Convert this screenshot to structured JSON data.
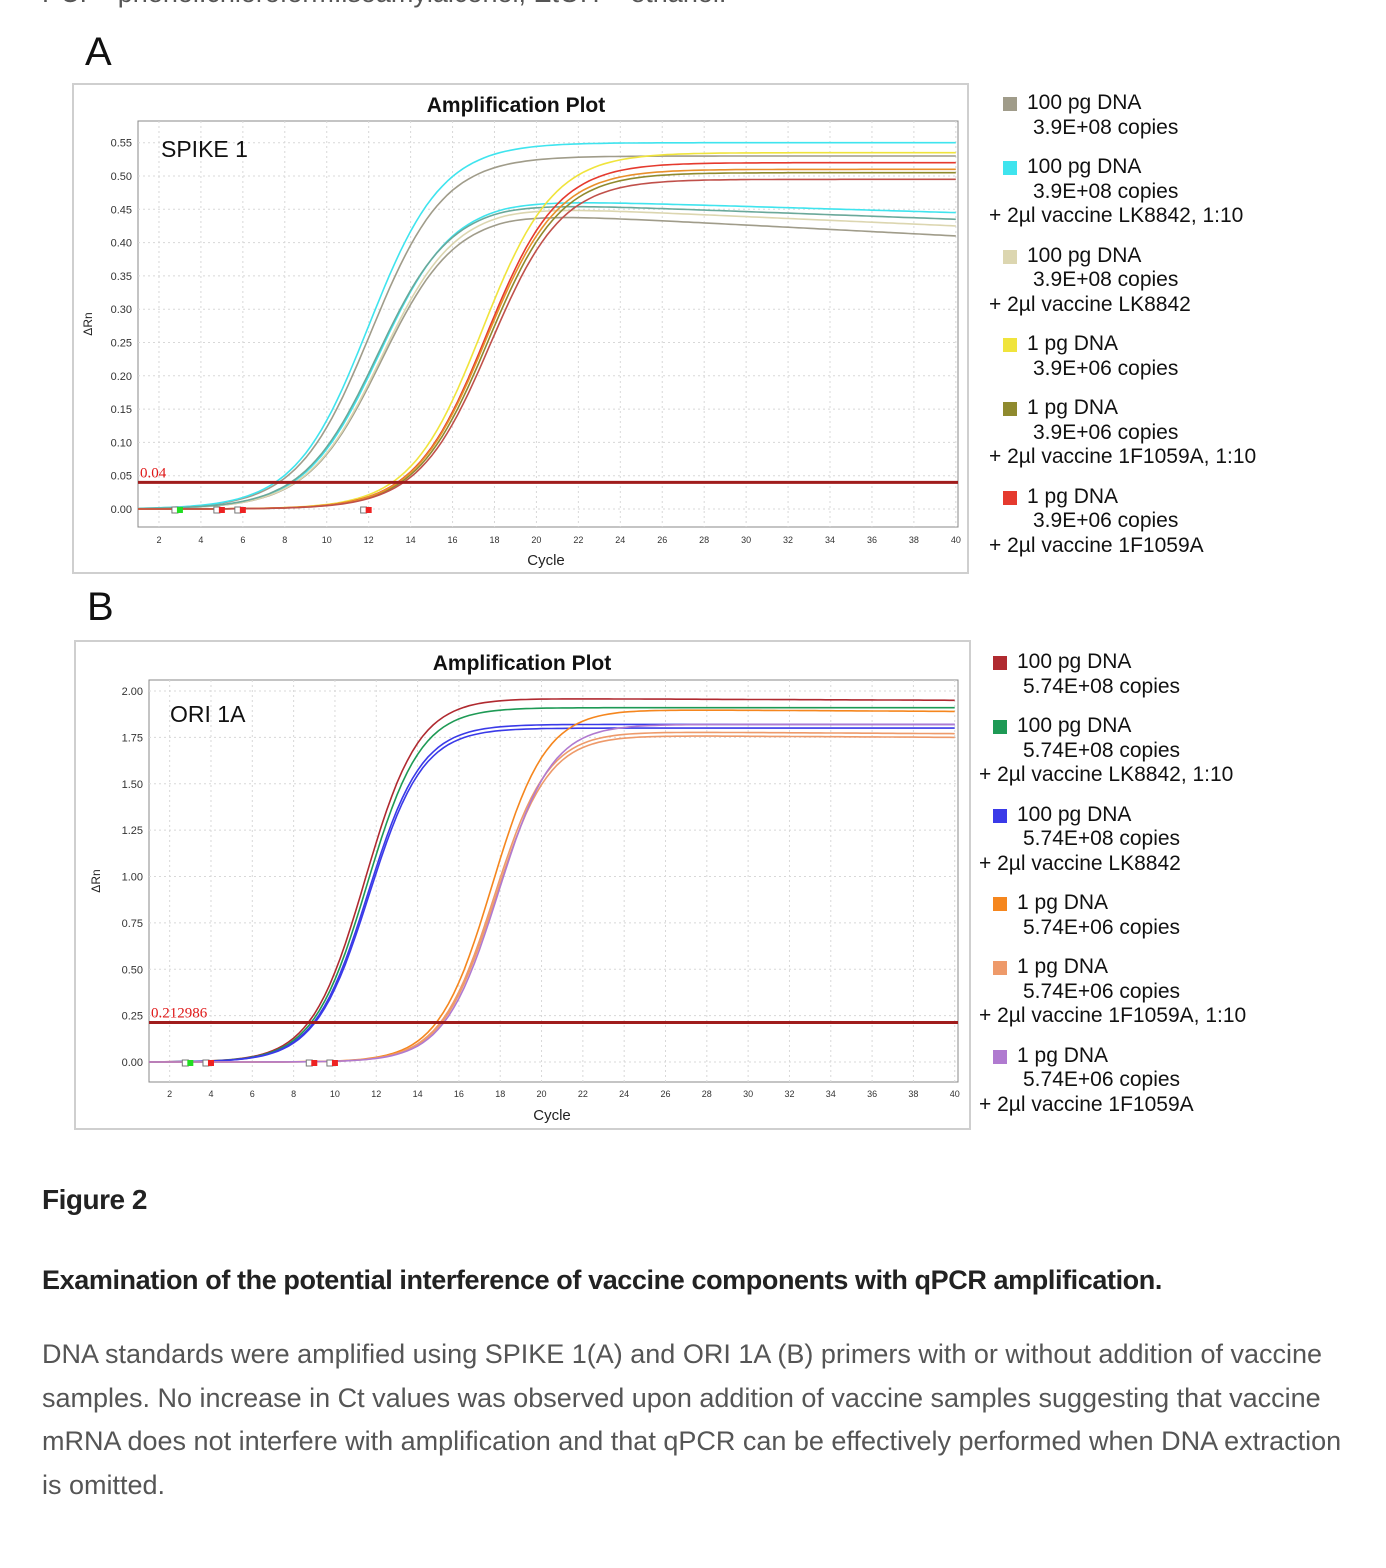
{
  "top_text": "PCI = phenol:chloroform:isoamylalcohol, EtOH = ethanol.",
  "panels": {
    "a": "A",
    "b": "B"
  },
  "chart_data": [
    {
      "type": "line",
      "title": "Amplification Plot",
      "annotation": "SPIKE 1",
      "xlabel": "Cycle",
      "ylabel": "ΔRn",
      "xlim": [
        1,
        40
      ],
      "ylim": [
        -0.03,
        0.58
      ],
      "xticks": [
        "2",
        "4",
        "6",
        "8",
        "10",
        "12",
        "14",
        "16",
        "18",
        "20",
        "22",
        "24",
        "26",
        "28",
        "30",
        "32",
        "34",
        "36",
        "38",
        "40"
      ],
      "yticks": [
        "0.00",
        "0.05",
        "0.10",
        "0.15",
        "0.20",
        "0.25",
        "0.30",
        "0.35",
        "0.40",
        "0.45",
        "0.50",
        "0.55"
      ],
      "ytick_values": [
        0,
        0.05,
        0.1,
        0.15,
        0.2,
        0.25,
        0.3,
        0.35,
        0.4,
        0.45,
        0.5,
        0.55
      ],
      "threshold": {
        "value": 0.04,
        "label": "0.04",
        "color": "#a01c1c"
      },
      "grid": true,
      "curve_model": "logistic: y = plateau/(1+exp(-(cycle-midpoint)/slope)), linear drift to final after plateau",
      "series": [
        {
          "name": "100 pg DNA",
          "color": "#a09c8a",
          "midpoint": 12.1,
          "slope": 1.75,
          "plateau": 0.53,
          "final": 0.53
        },
        {
          "name": "100 pg DNA",
          "color": "#a09c8a",
          "midpoint": 12.6,
          "slope": 1.75,
          "plateau": 0.445,
          "final": 0.41
        },
        {
          "name": "100 pg DNA + 2µl vaccine LK8842, 1:10",
          "color": "#3fe4ee",
          "midpoint": 12.0,
          "slope": 1.75,
          "plateau": 0.55,
          "final": 0.55
        },
        {
          "name": "100 pg DNA + 2µl vaccine LK8842, 1:10",
          "color": "#3fe4ee",
          "midpoint": 12.5,
          "slope": 1.75,
          "plateau": 0.465,
          "final": 0.445
        },
        {
          "name": "100 pg DNA + 2µl vaccine LK8842",
          "color": "#dcd6b0",
          "midpoint": 12.6,
          "slope": 1.75,
          "plateau": 0.455,
          "final": 0.425
        },
        {
          "name": "100 pg DNA + 2µl vaccine LK8842",
          "color": "#6aa89a",
          "midpoint": 12.4,
          "slope": 1.75,
          "plateau": 0.46,
          "final": 0.435
        },
        {
          "name": "1 pg DNA",
          "color": "#f0e43c",
          "midpoint": 17.4,
          "slope": 1.7,
          "plateau": 0.535,
          "final": 0.535
        },
        {
          "name": "1 pg DNA + 2µl vaccine 1F1059A, 1:10",
          "color": "#8f8a2e",
          "midpoint": 17.7,
          "slope": 1.7,
          "plateau": 0.505,
          "final": 0.505
        },
        {
          "name": "1 pg DNA + 2µl vaccine 1F1059A",
          "color": "#e53a2e",
          "midpoint": 17.6,
          "slope": 1.7,
          "plateau": 0.52,
          "final": 0.52
        },
        {
          "name": "1 pg DNA",
          "color": "#e8902a",
          "midpoint": 17.6,
          "slope": 1.7,
          "plateau": 0.51,
          "final": 0.51
        },
        {
          "name": "1 pg DNA + 2µl vaccine 1F1059A",
          "color": "#c0504a",
          "midpoint": 17.8,
          "slope": 1.7,
          "plateau": 0.495,
          "final": 0.495
        }
      ],
      "baseline_markers": [
        {
          "cycle": 3,
          "color": "#22dd22"
        },
        {
          "cycle": 5,
          "color": "#ee2222"
        },
        {
          "cycle": 6,
          "color": "#ee2222"
        },
        {
          "cycle": 12,
          "color": "#ee2222"
        }
      ],
      "legend": [
        {
          "lines": [
            "100 pg DNA",
            "3.9E+08 copies"
          ],
          "color": "#a09c8a"
        },
        {
          "lines": [
            "100 pg DNA",
            "3.9E+08 copies",
            "+ 2µl vaccine LK8842, 1:10"
          ],
          "color": "#3fe4ee"
        },
        {
          "lines": [
            "100 pg DNA",
            "3.9E+08 copies",
            "+ 2µl vaccine LK8842"
          ],
          "color": "#dcd6b0"
        },
        {
          "lines": [
            "1 pg DNA",
            "3.9E+06 copies"
          ],
          "color": "#f0e43c"
        },
        {
          "lines": [
            "1 pg DNA",
            "3.9E+06 copies",
            "+ 2µl vaccine 1F1059A, 1:10"
          ],
          "color": "#8f8a2e"
        },
        {
          "lines": [
            "1 pg DNA",
            "3.9E+06 copies",
            "+ 2µl vaccine 1F1059A"
          ],
          "color": "#e53a2e"
        }
      ]
    },
    {
      "type": "line",
      "title": "Amplification Plot",
      "annotation": "ORI 1A",
      "xlabel": "Cycle",
      "ylabel": "ΔRn",
      "xlim": [
        1,
        40
      ],
      "ylim": [
        -0.1,
        2.1
      ],
      "xticks": [
        "2",
        "4",
        "6",
        "8",
        "10",
        "12",
        "14",
        "16",
        "18",
        "20",
        "22",
        "24",
        "26",
        "28",
        "30",
        "32",
        "34",
        "36",
        "38",
        "40"
      ],
      "yticks": [
        "0.00",
        "0.25",
        "0.50",
        "0.75",
        "1.00",
        "1.25",
        "1.50",
        "1.75",
        "2.00"
      ],
      "ytick_values": [
        0,
        0.25,
        0.5,
        0.75,
        1,
        1.25,
        1.5,
        1.75,
        2
      ],
      "threshold": {
        "value": 0.212986,
        "label": "0.212986",
        "color": "#a01c1c"
      },
      "grid": true,
      "curve_model": "logistic: y = plateau/(1+exp(-(cycle-midpoint)/slope))",
      "series": [
        {
          "name": "100 pg DNA",
          "color": "#b02a30",
          "midpoint": 11.45,
          "slope": 1.3,
          "plateau": 1.96,
          "final": 1.95
        },
        {
          "name": "100 pg DNA + 2µl vaccine LK8842, 1:10",
          "color": "#1e9a55",
          "midpoint": 11.55,
          "slope": 1.3,
          "plateau": 1.91,
          "final": 1.91
        },
        {
          "name": "100 pg DNA + 2µl vaccine LK8842",
          "color": "#3a3ae8",
          "midpoint": 11.6,
          "slope": 1.3,
          "plateau": 1.82,
          "final": 1.82
        },
        {
          "name": "100 pg DNA + 2µl vaccine LK8842",
          "color": "#3a3ae8",
          "midpoint": 11.65,
          "slope": 1.3,
          "plateau": 1.8,
          "final": 1.8
        },
        {
          "name": "1 pg DNA",
          "color": "#f5861e",
          "midpoint": 17.6,
          "slope": 1.3,
          "plateau": 1.9,
          "final": 1.89
        },
        {
          "name": "1 pg DNA + 2µl vaccine 1F1059A, 1:10",
          "color": "#ee9a6a",
          "midpoint": 17.7,
          "slope": 1.3,
          "plateau": 1.78,
          "final": 1.77
        },
        {
          "name": "1 pg DNA + 2µl vaccine 1F1059A, 1:10",
          "color": "#ee9a6a",
          "midpoint": 17.75,
          "slope": 1.3,
          "plateau": 1.76,
          "final": 1.75
        },
        {
          "name": "1 pg DNA + 2µl vaccine 1F1059A",
          "color": "#b07ad0",
          "midpoint": 17.9,
          "slope": 1.3,
          "plateau": 1.82,
          "final": 1.82
        }
      ],
      "baseline_markers": [
        {
          "cycle": 3,
          "color": "#22dd22"
        },
        {
          "cycle": 4,
          "color": "#ee2222"
        },
        {
          "cycle": 9,
          "color": "#ee2222"
        },
        {
          "cycle": 10,
          "color": "#ee2222"
        }
      ],
      "legend": [
        {
          "lines": [
            "100 pg DNA",
            "5.74E+08 copies"
          ],
          "color": "#b02a30"
        },
        {
          "lines": [
            "100 pg DNA",
            "5.74E+08 copies",
            "+ 2µl vaccine LK8842, 1:10"
          ],
          "color": "#1e9a55"
        },
        {
          "lines": [
            "100 pg DNA",
            "5.74E+08 copies",
            "+ 2µl vaccine LK8842"
          ],
          "color": "#3a3ae8"
        },
        {
          "lines": [
            "1 pg DNA",
            "5.74E+06 copies"
          ],
          "color": "#f5861e"
        },
        {
          "lines": [
            "1 pg DNA",
            "5.74E+06 copies",
            "+ 2µl vaccine 1F1059A, 1:10"
          ],
          "color": "#ee9a6a"
        },
        {
          "lines": [
            "1 pg DNA",
            "5.74E+06 copies",
            "+ 2µl vaccine 1F1059A"
          ],
          "color": "#b07ad0"
        }
      ]
    }
  ],
  "figure": {
    "label": "Figure 2",
    "title": "Examination of the potential interference of vaccine components with qPCR amplification.",
    "body": "DNA standards were amplified using SPIKE 1(A) and ORI 1A (B) primers with or without addition of vaccine samples. No increase in Ct values was observed upon addition of vaccine samples suggesting that vaccine mRNA does not interfere with amplification and that qPCR can be effectively performed when DNA extraction is omitted."
  }
}
